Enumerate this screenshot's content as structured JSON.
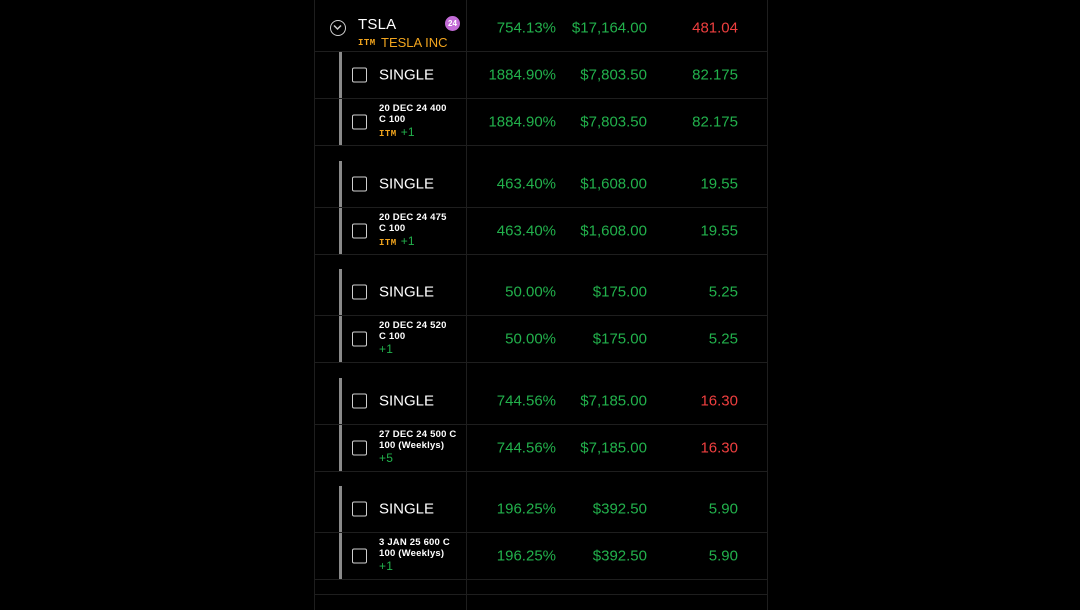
{
  "position": {
    "ticker": "TSLA",
    "badge_count": "24",
    "itm_tag": "ITM",
    "company": "TESLA INC",
    "pct": "754.13%",
    "value": "$17,164.00",
    "change": "481.04",
    "change_color": "red"
  },
  "groups": [
    {
      "label": "SINGLE",
      "pct": "1884.90%",
      "value": "$7,803.50",
      "change": "82.175",
      "change_color": "green",
      "leg": {
        "line1": "20 DEC 24 400",
        "line2": "C 100",
        "itm": "ITM",
        "qty": "+1",
        "pct": "1884.90%",
        "value": "$7,803.50",
        "change": "82.175"
      }
    },
    {
      "label": "SINGLE",
      "pct": "463.40%",
      "value": "$1,608.00",
      "change": "19.55",
      "change_color": "green",
      "leg": {
        "line1": "20 DEC 24 475",
        "line2": "C 100",
        "itm": "ITM",
        "qty": "+1",
        "pct": "463.40%",
        "value": "$1,608.00",
        "change": "19.55"
      }
    },
    {
      "label": "SINGLE",
      "pct": "50.00%",
      "value": "$175.00",
      "change": "5.25",
      "change_color": "green",
      "leg": {
        "line1": "20 DEC 24 520",
        "line2": "C 100",
        "itm": "",
        "qty": "+1",
        "pct": "50.00%",
        "value": "$175.00",
        "change": "5.25"
      }
    },
    {
      "label": "SINGLE",
      "pct": "744.56%",
      "value": "$7,185.00",
      "change": "16.30",
      "change_color": "red",
      "leg": {
        "line1": "27 DEC 24 500 C",
        "line2": "100 (Weeklys)",
        "itm": "",
        "qty": "+5",
        "pct": "744.56%",
        "value": "$7,185.00",
        "change": "16.30"
      }
    },
    {
      "label": "SINGLE",
      "pct": "196.25%",
      "value": "$392.50",
      "change": "5.90",
      "change_color": "green",
      "leg": {
        "line1": "3 JAN 25 600 C",
        "line2": "100 (Weeklys)",
        "itm": "",
        "qty": "+1",
        "pct": "196.25%",
        "value": "$392.50",
        "change": "5.90"
      }
    }
  ],
  "colors": {
    "green": "#22b14c",
    "red": "#ef3f3f",
    "itm": "#f2a51e",
    "badge": "#c26bd6"
  }
}
